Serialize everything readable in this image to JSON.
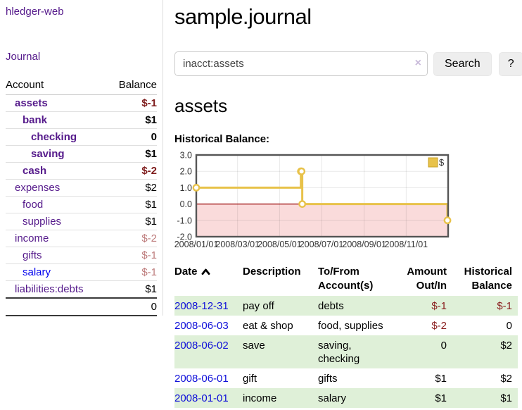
{
  "app_title": "hledger-web",
  "sidebar": {
    "journal_label": "Journal",
    "accounts": {
      "header_account": "Account",
      "header_balance": "Balance",
      "rows": [
        {
          "name": "assets",
          "balance": "$-1"
        },
        {
          "name": "bank",
          "balance": "$1"
        },
        {
          "name": "checking",
          "balance": "0"
        },
        {
          "name": "saving",
          "balance": "$1"
        },
        {
          "name": "cash",
          "balance": "$-2"
        },
        {
          "name": "expenses",
          "balance": "$2"
        },
        {
          "name": "food",
          "balance": "$1"
        },
        {
          "name": "supplies",
          "balance": "$1"
        },
        {
          "name": "income",
          "balance": "$-2"
        },
        {
          "name": "gifts",
          "balance": "$-1"
        },
        {
          "name": "salary",
          "balance": "$-1"
        },
        {
          "name": "liabilities:debts",
          "balance": "$1"
        }
      ],
      "total": "0"
    }
  },
  "main": {
    "title": "sample.journal",
    "search": {
      "value": "inacct:assets",
      "clear_icon": "×",
      "button_label": "Search",
      "help_label": "?"
    },
    "account_heading": "assets",
    "chart_label": "Historical Balance:"
  },
  "chart_data": {
    "type": "line",
    "step": true,
    "title": "Historical Balance:",
    "series": [
      {
        "name": "$",
        "points": [
          {
            "x": "2008-01-01",
            "y": 1
          },
          {
            "x": "2008-06-01",
            "y": 2
          },
          {
            "x": "2008-06-02",
            "y": 2
          },
          {
            "x": "2008-06-03",
            "y": 0
          },
          {
            "x": "2008-12-31",
            "y": -1
          }
        ]
      }
    ],
    "x_range": [
      "2008-01-01",
      "2009-01-01"
    ],
    "x_ticks": [
      "2008/01/01",
      "2008/03/01",
      "2008/05/01",
      "2008/07/01",
      "2008/09/01",
      "2008/11/01"
    ],
    "y_ticks": [
      3.0,
      2.0,
      1.0,
      0.0,
      -1.0,
      -2.0
    ],
    "ylim": [
      -2,
      3
    ],
    "legend_position": "top-right",
    "grid": true,
    "line_color": "#e8c24a",
    "marker_fill": "#ffffff",
    "legend_box_border": "#c9a227",
    "negative_region_color": "#fadbdb",
    "zero_line_color": "#990000",
    "border_color": "#555555"
  },
  "register": {
    "headers": {
      "date": "Date",
      "description": "Description",
      "accounts": "To/From Account(s)",
      "amount": "Amount Out/In",
      "balance": "Historical Balance"
    },
    "rows": [
      {
        "date": "2008-12-31",
        "description": "pay off",
        "accounts": "debts",
        "amount": "$-1",
        "balance": "$-1"
      },
      {
        "date": "2008-06-03",
        "description": "eat & shop",
        "accounts": "food, supplies",
        "amount": "$-2",
        "balance": "0"
      },
      {
        "date": "2008-06-02",
        "description": "save",
        "accounts": "saving,\nchecking",
        "amount": "0",
        "balance": "$2"
      },
      {
        "date": "2008-06-01",
        "description": "gift",
        "accounts": "gifts",
        "amount": "$1",
        "balance": "$2"
      },
      {
        "date": "2008-01-01",
        "description": "income",
        "accounts": "salary",
        "amount": "$1",
        "balance": "$1"
      }
    ]
  }
}
